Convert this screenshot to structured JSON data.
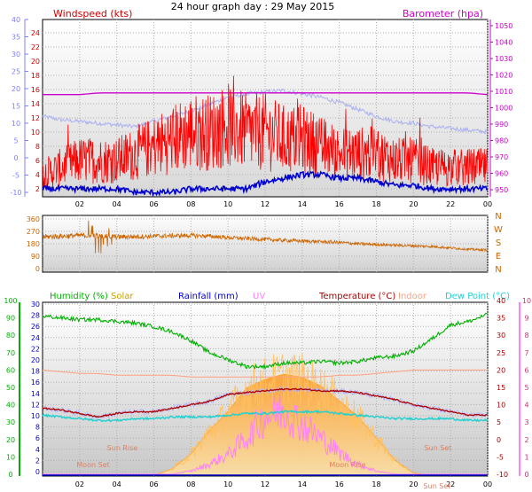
{
  "title": "24 hour graph day : 29 May 2015",
  "x_ticks": [
    "02",
    "04",
    "06",
    "08",
    "10",
    "12",
    "14",
    "16",
    "18",
    "20",
    "22",
    "00"
  ],
  "chart_data": [
    {
      "type": "line",
      "panel": "wind_barometer",
      "left_title": "Windspeed (kts)",
      "right_title": "Barometer (hpa)",
      "colors": {
        "wind_gust": "#ff0000",
        "wind_avg": "#0000cc",
        "barometer": "#cc00cc",
        "temperature_band": "#aab0f0"
      },
      "y_left_ticks": [
        "2",
        "4",
        "6",
        "8",
        "10",
        "12",
        "14",
        "16",
        "18",
        "20",
        "22",
        "24"
      ],
      "y_left_outer_ticks": [
        "-10",
        "-5",
        "0",
        "5",
        "10",
        "15",
        "20",
        "25",
        "30",
        "35",
        "40"
      ],
      "y_right_ticks": [
        "950",
        "960",
        "970",
        "980",
        "990",
        "1000",
        "1010",
        "1020",
        "1030",
        "1040",
        "1050"
      ],
      "wind_gust_kts": [
        4,
        5,
        6,
        6,
        6,
        7,
        8,
        9,
        10,
        10,
        11,
        10,
        10,
        9,
        9,
        8,
        7,
        7,
        7,
        6,
        6,
        5,
        5,
        5,
        5
      ],
      "wind_avg_kts": [
        2,
        2,
        2,
        2,
        2,
        1.5,
        1.5,
        1.5,
        2,
        2,
        2,
        2,
        3,
        3.5,
        4,
        4,
        3.5,
        3.5,
        3,
        2.5,
        2.5,
        2,
        2,
        2,
        2
      ],
      "barometer_hpa": [
        1008,
        1008,
        1008,
        1009,
        1009,
        1009,
        1009,
        1009,
        1009,
        1009,
        1009,
        1009,
        1009,
        1009,
        1009,
        1009,
        1009,
        1009,
        1009,
        1009,
        1009,
        1009,
        1009,
        1009,
        1008
      ],
      "temperature_band_c": [
        12,
        11,
        10.5,
        10,
        9.5,
        9,
        10.5,
        12,
        13.5,
        15.5,
        17.5,
        18.5,
        19,
        19.5,
        18.5,
        17.5,
        16,
        14,
        12,
        10.5,
        10,
        9,
        8.5,
        8,
        7.5
      ]
    },
    {
      "type": "line",
      "panel": "wind_direction",
      "color": "#cc6600",
      "y_left_ticks": [
        "0",
        "90",
        "180",
        "270",
        "360"
      ],
      "y_right_labels": [
        "N",
        "W",
        "S",
        "E",
        "N"
      ],
      "direction_deg": [
        230,
        235,
        240,
        238,
        230,
        232,
        235,
        238,
        240,
        235,
        225,
        218,
        212,
        205,
        200,
        195,
        190,
        180,
        175,
        170,
        165,
        160,
        150,
        140,
        135
      ]
    },
    {
      "type": "line",
      "panel": "climate",
      "legend": [
        "Humidity (%)",
        "Solar",
        "Rainfall (mm)",
        "UV",
        "Temperature (°C)",
        "Indoor",
        "Dew Point (°C)"
      ],
      "colors": {
        "humidity": "#00b000",
        "solar": "#ffa020",
        "rainfall": "#0000cc",
        "uv": "#ff80ff",
        "temperature": "#aa0000",
        "indoor": "#ffa080",
        "dewpoint": "#20d0d0"
      },
      "y_humidity_ticks": [
        "0",
        "10",
        "20",
        "30",
        "40",
        "50",
        "60",
        "70",
        "80",
        "90",
        "100"
      ],
      "y_rain_ticks": [
        "0",
        "2",
        "4",
        "6",
        "8",
        "10",
        "12",
        "14",
        "16",
        "18",
        "20",
        "22",
        "24",
        "26",
        "28",
        "30"
      ],
      "y_temp_ticks": [
        "-10",
        "-5",
        "0",
        "5",
        "10",
        "15",
        "20",
        "25",
        "30",
        "35",
        "40"
      ],
      "y_uv_ticks": [
        "0",
        "1",
        "2",
        "3",
        "4",
        "5",
        "6",
        "7",
        "8",
        "9",
        "10"
      ],
      "humidity_pct": [
        91,
        90,
        89,
        89,
        88,
        87,
        85,
        82,
        77,
        70,
        66,
        62,
        62,
        64,
        64,
        65,
        64,
        65,
        67,
        68,
        71,
        78,
        86,
        88,
        92
      ],
      "temperature_c": [
        9,
        8.5,
        7.5,
        6.5,
        7.5,
        8,
        8,
        9,
        10,
        11,
        13,
        13.5,
        14,
        14.5,
        14.5,
        14,
        14,
        13.5,
        12.5,
        11.5,
        10,
        9,
        8,
        7,
        7
      ],
      "dewpoint_c": [
        7,
        6.5,
        6,
        5.5,
        5.5,
        6,
        6,
        6.5,
        6.5,
        6.5,
        7,
        7.5,
        7.5,
        8,
        8,
        8,
        7.5,
        7,
        6.5,
        6,
        6,
        6,
        6,
        5.5,
        5.5
      ],
      "indoor_c": [
        20,
        19.5,
        19,
        19,
        18.5,
        18.5,
        18.5,
        18.5,
        18,
        18,
        18,
        18,
        18,
        18,
        18,
        18,
        18.5,
        18.5,
        19,
        19.5,
        20,
        20,
        20,
        20,
        20
      ],
      "solar_rel": [
        0,
        0,
        0,
        0,
        0,
        0,
        0,
        0.06,
        0.2,
        0.42,
        0.6,
        0.82,
        0.9,
        0.95,
        0.92,
        0.84,
        0.7,
        0.55,
        0.35,
        0.14,
        0.02,
        0,
        0,
        0,
        0
      ],
      "uv_index": [
        0,
        0,
        0,
        0,
        0,
        0,
        0,
        0,
        0.2,
        0.6,
        1.2,
        2.2,
        3.5,
        3.9,
        3,
        2.2,
        1.3,
        0.6,
        0.2,
        0,
        0,
        0,
        0,
        0,
        0
      ],
      "rainfall_mm": 0,
      "annotations": [
        "Sun Rise",
        "Moon Set",
        "Moon Rise",
        "Sun Set",
        "Sun Set"
      ]
    }
  ]
}
